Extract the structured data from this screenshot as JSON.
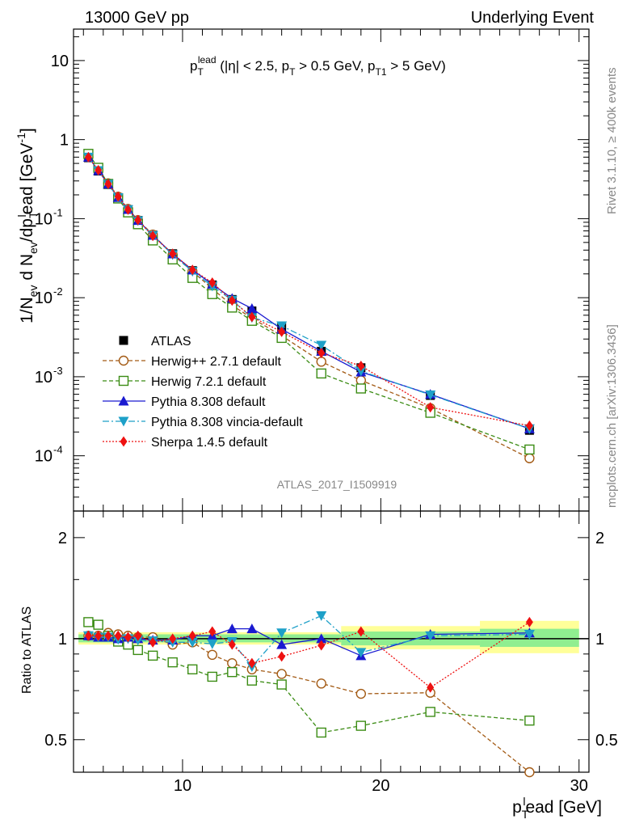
{
  "header": {
    "left": "13000 GeV pp",
    "right": "Underlying Event"
  },
  "side_labels": {
    "rivet": "Rivet 3.1.10, ≥ 400k events",
    "mcplots": "mcplots.cern.ch [arXiv:1306.3436]"
  },
  "watermark": "ATLAS_2017_I1509919",
  "chart_data": [
    {
      "type": "scatter",
      "title": "p_T^lead (|η| < 2.5, p_T > 0.5 GeV, p_T1 > 5 GeV)",
      "title_parts": {
        "p": "p",
        "sup": "lead",
        "sub": "T",
        "rest1": " (|η| < 2.5, p",
        "sub2": "T",
        "rest2": " > 0.5 GeV, p",
        "sub3": "T1",
        "rest3": " > 5 GeV)"
      },
      "ylabel": "1/N_ev d N_ev/dp_T^lead [GeV^-1]",
      "ylabel_parts": {
        "a": "1/N",
        "a_sub": "ev",
        "b": " d N",
        "b_sub": "ev",
        "c": "/dp",
        "c_sub": "T",
        "c_sup": "l",
        "d": "ead [GeV",
        "d_sup": "-1",
        "e": "]"
      },
      "yscale": "log",
      "ylim": [
        2e-05,
        25
      ],
      "xlim": [
        4.5,
        30.5
      ],
      "yticks": [
        {
          "v": 10,
          "label": "10"
        },
        {
          "v": 1,
          "label": "1"
        },
        {
          "v": 0.1,
          "label": "10",
          "exp": "-1"
        },
        {
          "v": 0.01,
          "label": "10",
          "exp": "-2"
        },
        {
          "v": 0.001,
          "label": "10",
          "exp": "-3"
        },
        {
          "v": 0.0001,
          "label": "10",
          "exp": "-4"
        }
      ],
      "x": [
        5.25,
        5.75,
        6.25,
        6.75,
        7.25,
        7.75,
        8.5,
        9.5,
        10.5,
        11.5,
        12.5,
        13.5,
        15,
        17,
        19,
        22.5,
        27.5
      ],
      "series": [
        {
          "name": "ATLAS",
          "values": [
            0.59,
            0.4,
            0.27,
            0.185,
            0.13,
            0.095,
            0.062,
            0.036,
            0.022,
            0.0145,
            0.0095,
            0.0068,
            0.0042,
            0.0021,
            0.0013,
            0.00058,
            0.00021
          ]
        },
        {
          "name": "Herwig++ 2.7.1 default",
          "values": [
            0.605,
            0.41,
            0.28,
            0.19,
            0.133,
            0.096,
            0.063,
            0.035,
            0.0215,
            0.013,
            0.008,
            0.0055,
            0.0033,
            0.00155,
            0.0009,
            0.0004,
            9.3e-05
          ]
        },
        {
          "name": "Herwig 7.2.1 default",
          "values": [
            0.66,
            0.44,
            0.275,
            0.18,
            0.12,
            0.085,
            0.053,
            0.0305,
            0.0178,
            0.0111,
            0.0075,
            0.0051,
            0.0031,
            0.0011,
            0.00071,
            0.00035,
            0.00012
          ]
        },
        {
          "name": "Pythia 8.308 default",
          "values": [
            0.6,
            0.405,
            0.273,
            0.185,
            0.131,
            0.095,
            0.0615,
            0.0358,
            0.0224,
            0.0148,
            0.0098,
            0.0073,
            0.004,
            0.0021,
            0.00115,
            0.0006,
            0.00022
          ]
        },
        {
          "name": "Pythia 8.308 vincia-default",
          "values": [
            0.6,
            0.405,
            0.272,
            0.184,
            0.13,
            0.094,
            0.061,
            0.035,
            0.0215,
            0.014,
            0.0093,
            0.0056,
            0.0044,
            0.0025,
            0.00118,
            0.00059,
            0.00022
          ]
        },
        {
          "name": "Sherpa 1.4.5 default",
          "values": [
            0.6,
            0.41,
            0.275,
            0.19,
            0.13,
            0.096,
            0.0605,
            0.036,
            0.0225,
            0.0155,
            0.0092,
            0.0057,
            0.0037,
            0.002,
            0.00137,
            0.00041,
            0.00024
          ]
        }
      ]
    },
    {
      "type": "scatter",
      "ylabel": "Ratio to ATLAS",
      "xlabel": "p_T^lead [GeV]",
      "xlabel_parts": {
        "p": "p",
        "sub": "T",
        "sup": "l",
        "rest": "ead [GeV]"
      },
      "yscale": "log",
      "ylim": [
        0.4,
        2.4
      ],
      "xlim": [
        4.5,
        30.5
      ],
      "yticks": [
        {
          "v": 0.5,
          "label": "0.5"
        },
        {
          "v": 1,
          "label": "1"
        },
        {
          "v": 2,
          "label": "2"
        }
      ],
      "xticks": [
        {
          "v": 10,
          "label": "10"
        },
        {
          "v": 20,
          "label": "20"
        },
        {
          "v": 30,
          "label": "30"
        }
      ],
      "x": [
        5.25,
        5.75,
        6.25,
        6.75,
        7.25,
        7.75,
        8.5,
        9.5,
        10.5,
        11.5,
        12.5,
        13.5,
        15,
        17,
        19,
        22.5,
        27.5
      ],
      "series": [
        {
          "name": "Herwig++ 2.7.1 default",
          "values": [
            1.02,
            1.02,
            1.04,
            1.03,
            1.02,
            1.01,
            1.01,
            0.96,
            0.975,
            0.895,
            0.845,
            0.81,
            0.785,
            0.735,
            0.685,
            0.69,
            0.4
          ]
        },
        {
          "name": "Herwig 7.2.1 default",
          "values": [
            1.12,
            1.1,
            1.02,
            0.98,
            0.96,
            0.925,
            0.89,
            0.85,
            0.81,
            0.77,
            0.795,
            0.75,
            0.73,
            0.525,
            0.55,
            0.605,
            0.57
          ]
        },
        {
          "name": "Pythia 8.308 default",
          "values": [
            1.02,
            1.01,
            1.01,
            1.0,
            1.01,
            1.0,
            0.99,
            0.99,
            1.02,
            1.02,
            1.07,
            1.07,
            0.96,
            1.0,
            0.89,
            1.03,
            1.04
          ]
        },
        {
          "name": "Pythia 8.308 vincia-default",
          "values": [
            1.02,
            1.01,
            1.01,
            0.995,
            1.0,
            0.99,
            0.985,
            0.975,
            0.975,
            0.965,
            0.98,
            0.825,
            1.04,
            1.17,
            0.91,
            1.02,
            1.03
          ]
        },
        {
          "name": "Sherpa 1.4.5 default",
          "values": [
            1.02,
            1.02,
            1.02,
            1.02,
            1.01,
            1.02,
            0.975,
            1.0,
            1.02,
            1.05,
            0.96,
            0.845,
            0.885,
            0.955,
            1.05,
            0.715,
            1.12
          ]
        }
      ],
      "bands": {
        "inner": [
          [
            4.75,
            18,
            0.975,
            1.03
          ],
          [
            18,
            25,
            0.955,
            1.05
          ],
          [
            25,
            30,
            0.945,
            1.07
          ]
        ],
        "outer": [
          [
            4.75,
            18,
            0.96,
            1.045
          ],
          [
            18,
            25,
            0.93,
            1.09
          ],
          [
            25,
            30,
            0.905,
            1.13
          ]
        ]
      }
    }
  ],
  "colors": {
    "atlas": "#000000",
    "herwigpp": "#a35a14",
    "herwig7": "#3b8c14",
    "pythia": "#1a1ad0",
    "vincia": "#1ea0c8",
    "sherpa": "#ee1111",
    "band_inner": "#90ee90",
    "band_outer": "#ffff99"
  }
}
